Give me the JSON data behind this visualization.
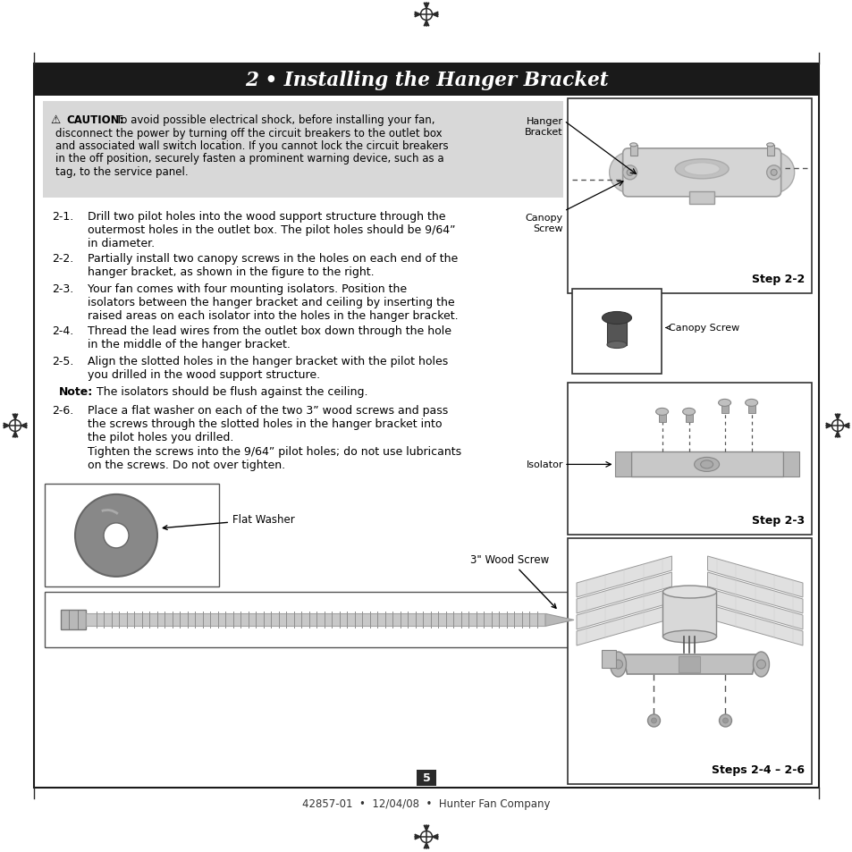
{
  "page_bg": "#ffffff",
  "title_bg": "#1a1a1a",
  "title_text": "2 • Installing the Hanger Bracket",
  "title_color": "#ffffff",
  "caution_bg": "#d8d8d8",
  "caution_bold": "⚠ CAUTION:",
  "caution_body": "To avoid possible electrical shock, before installing your fan,\ndisconnect the power by turning off the circuit breakers to the outlet box\nand associated wall switch location. If you cannot lock the circuit breakers\nin the off position, securely fasten a prominent warning device, such as a\ntag, to the service panel.",
  "step_21": "Drill two pilot holes into the wood support structure through the\noutermost holes in the outlet box. The pilot holes should be 9/64”\nin diameter.",
  "step_22": "Partially install two canopy screws in the holes on each end of the\nhanger bracket, as shown in the figure to the right.",
  "step_23": "Your fan comes with four mounting isolators. Position the\nisolators between the hanger bracket and ceiling by inserting the\nraised areas on each isolator into the holes in the hanger bracket.",
  "step_24": "Thread the lead wires from the outlet box down through the hole\nin the middle of the hanger bracket.",
  "step_25": "Align the slotted holes in the hanger bracket with the pilot holes\nyou drilled in the wood support structure.",
  "note_text": "The isolators should be flush against the ceiling.",
  "step_26": "Place a flat washer on each of the two 3” wood screws and pass\nthe screws through the slotted holes in the hanger bracket into\nthe pilot holes you drilled.",
  "tighten_text": "Tighten the screws into the 9/64” pilot holes; do not use lubricants\non the screws. Do not over tighten.",
  "footer_text": "42857-01  •  12/04/08  •  Hunter Fan Company",
  "page_number": "5"
}
